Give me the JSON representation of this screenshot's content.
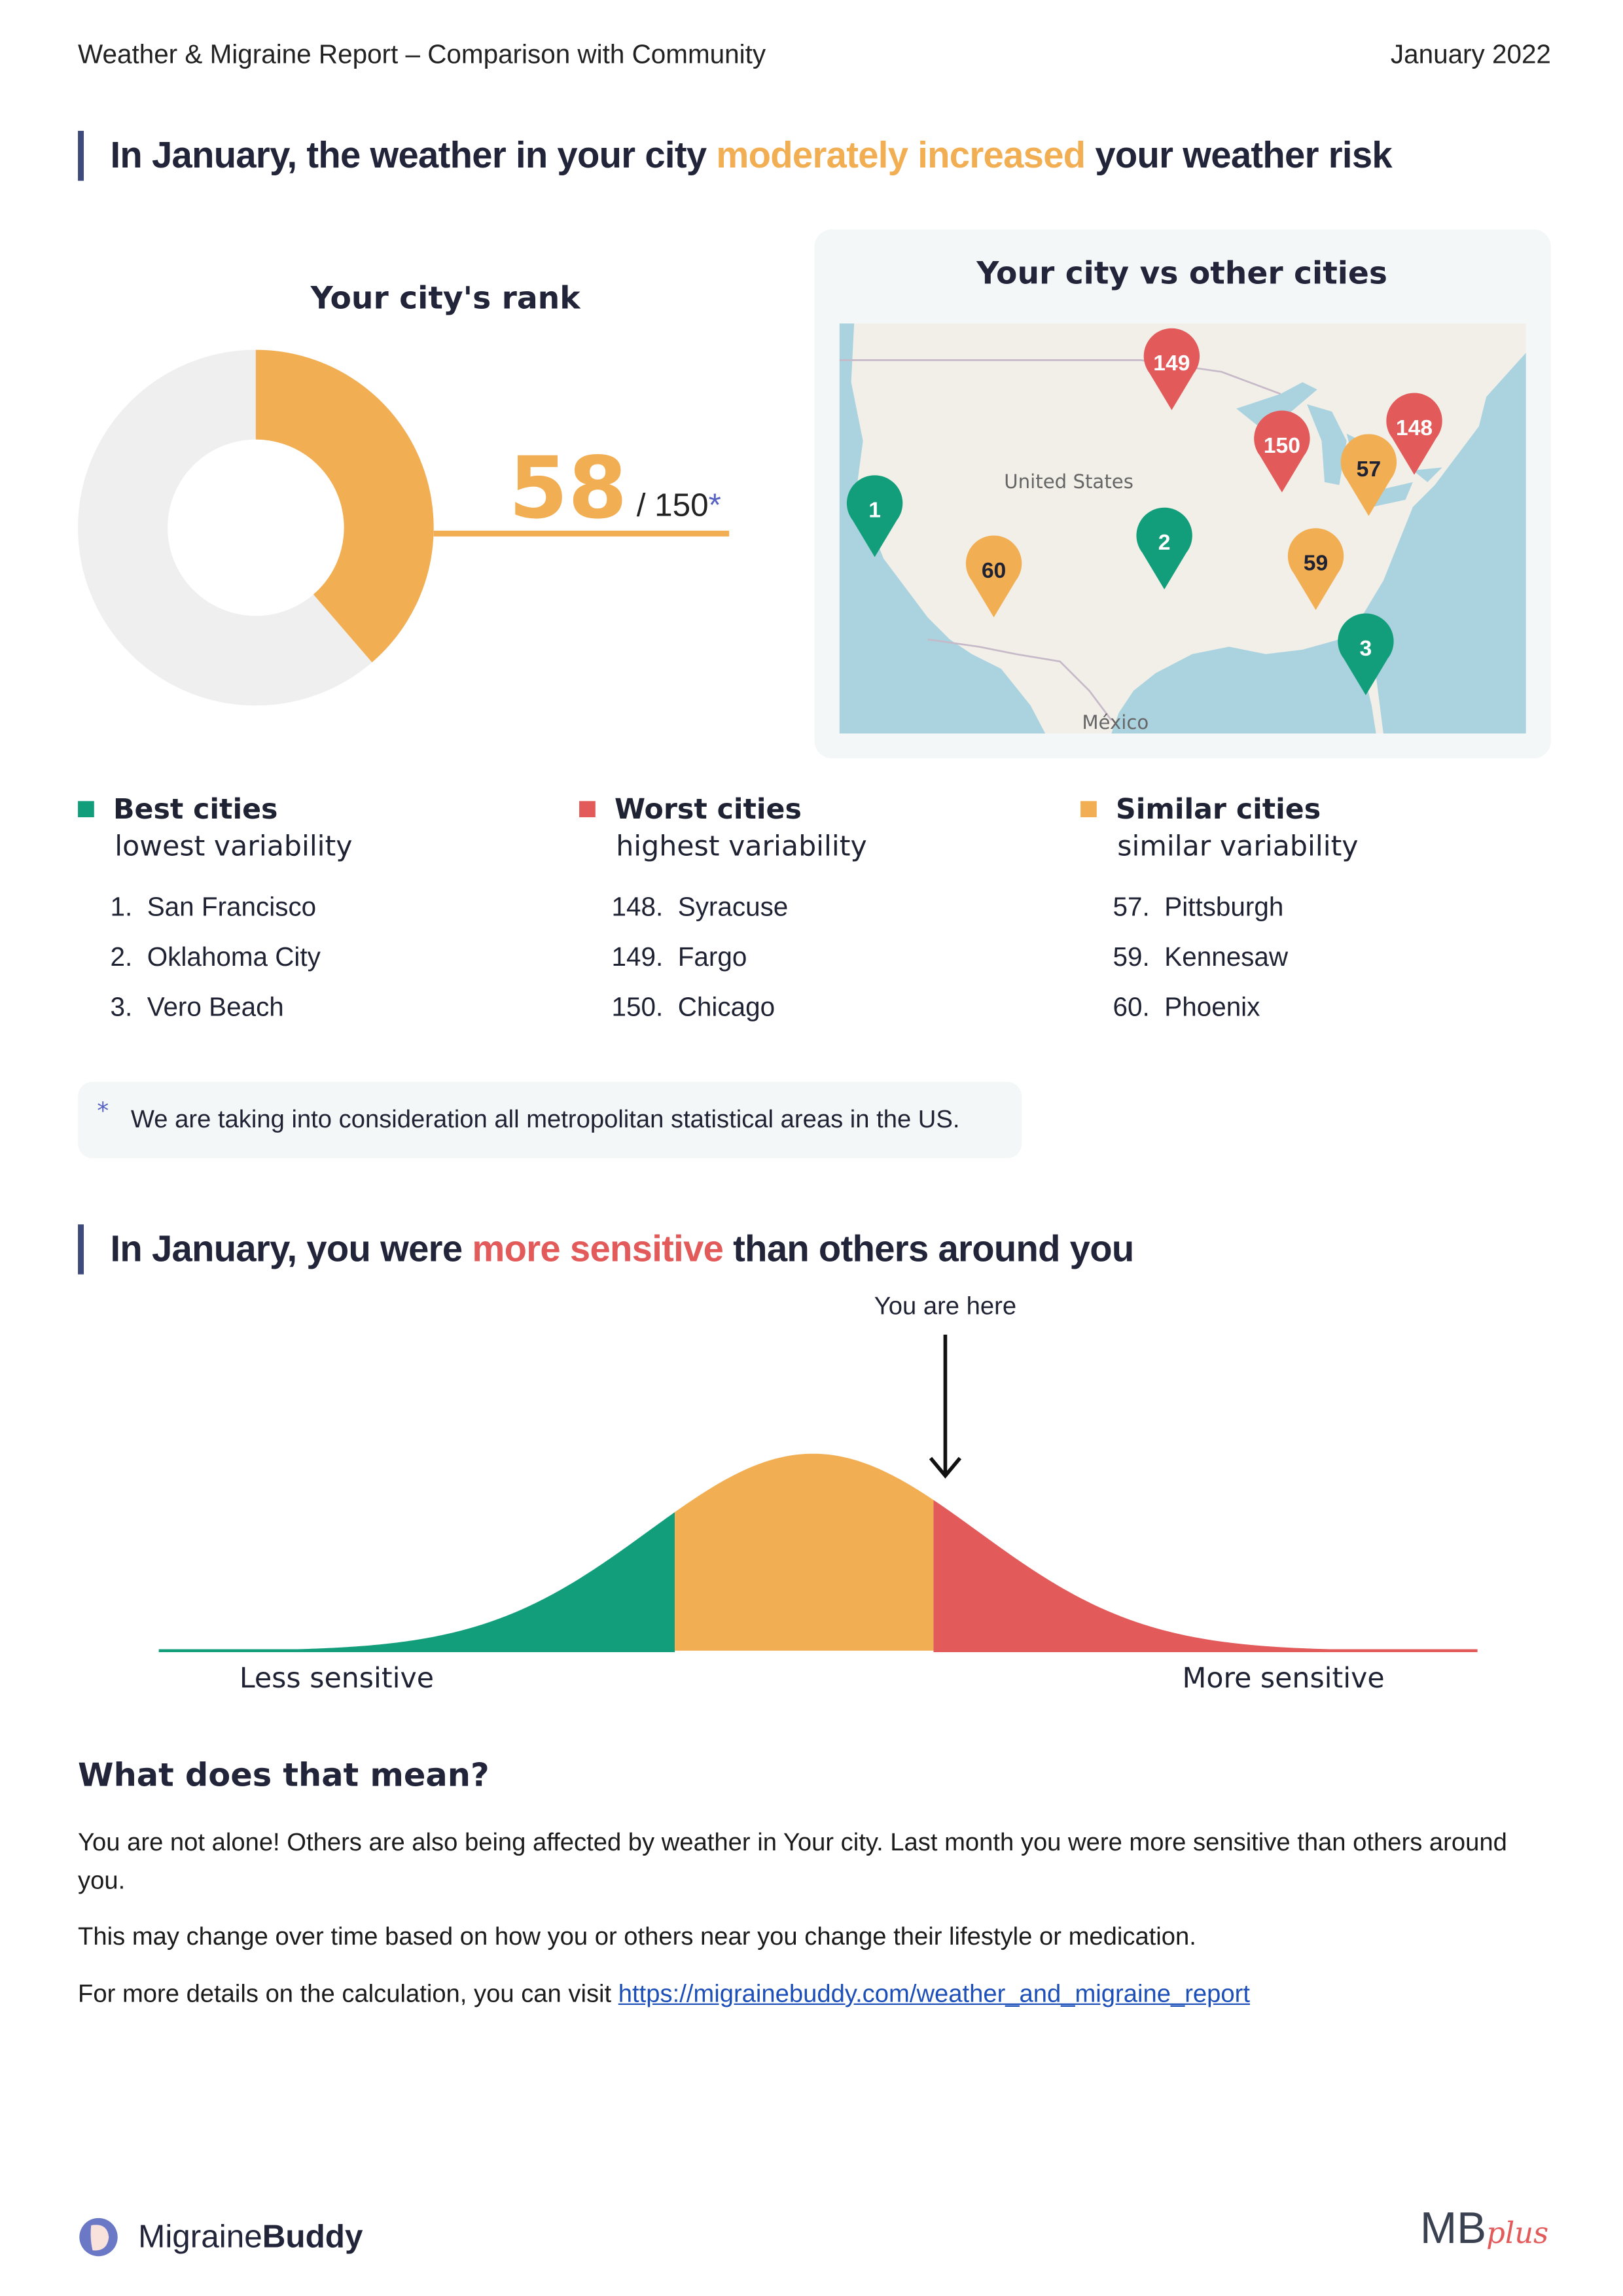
{
  "header": {
    "title": "Weather & Migraine Report  –  Comparison with Community",
    "date": "January 2022"
  },
  "section1": {
    "heading_pre": "In January, the weather in your city ",
    "heading_highlight": "moderately increased",
    "heading_post": " your weather risk",
    "highlight_color": "#f2ae52"
  },
  "rank": {
    "title": "Your city's rank",
    "value": "58",
    "total": "/ 150",
    "asterisk": "*",
    "rank": 58,
    "of": 150,
    "fill_color": "#f2ae52",
    "rest_color": "#efefef"
  },
  "map": {
    "title": "Your city vs other cities",
    "label_country": "United States",
    "label_mexico": "México",
    "pins": [
      {
        "label": "149",
        "group": "worst"
      },
      {
        "label": "150",
        "group": "worst"
      },
      {
        "label": "148",
        "group": "worst"
      },
      {
        "label": "57",
        "group": "similar"
      },
      {
        "label": "1",
        "group": "best"
      },
      {
        "label": "60",
        "group": "similar"
      },
      {
        "label": "2",
        "group": "best"
      },
      {
        "label": "59",
        "group": "similar"
      },
      {
        "label": "3",
        "group": "best"
      }
    ]
  },
  "colors": {
    "best": "#139e7b",
    "worst": "#e25a59",
    "similar": "#f2ae52"
  },
  "legend": [
    {
      "title": "Best cities",
      "subtitle": "lowest variability",
      "group": "best",
      "items": [
        {
          "rank": "1.",
          "city": "San Francisco"
        },
        {
          "rank": "2.",
          "city": "Oklahoma City"
        },
        {
          "rank": "3.",
          "city": "Vero Beach"
        }
      ]
    },
    {
      "title": "Worst cities",
      "subtitle": "highest variability",
      "group": "worst",
      "items": [
        {
          "rank": "148.",
          "city": "Syracuse"
        },
        {
          "rank": "149.",
          "city": "Fargo"
        },
        {
          "rank": "150.",
          "city": "Chicago"
        }
      ]
    },
    {
      "title": "Similar cities",
      "subtitle": "similar variability",
      "group": "similar",
      "items": [
        {
          "rank": "57.",
          "city": "Pittsburgh"
        },
        {
          "rank": "59.",
          "city": "Kennesaw"
        },
        {
          "rank": "60.",
          "city": "Phoenix"
        }
      ]
    }
  ],
  "footnote": {
    "mark": "*",
    "text": "We are taking into consideration all metropolitan statistical areas in the US."
  },
  "section2": {
    "heading_pre": "In January, you were ",
    "heading_highlight": "more sensitive",
    "heading_post": " than others around you",
    "highlight_color": "#e25a59"
  },
  "distribution": {
    "marker_label": "You are here",
    "left_label": "Less sensitive",
    "right_label": "More sensitive"
  },
  "meaning": {
    "title": "What does that mean?",
    "p1": "You are not alone! Others are also being affected by weather in Your city. Last month you were more sensitive than others around you.",
    "p2": "This may change over time based on how you or others near you change their lifestyle or medication.",
    "p3_pre": "For more details on the calculation, you can visit ",
    "link": "https://migrainebuddy.com/weather_and_migraine_report"
  },
  "footer": {
    "brand_light": "Migraine",
    "brand_bold": "Buddy",
    "mb_logo": "MB",
    "mb_logo_script": "plus"
  }
}
